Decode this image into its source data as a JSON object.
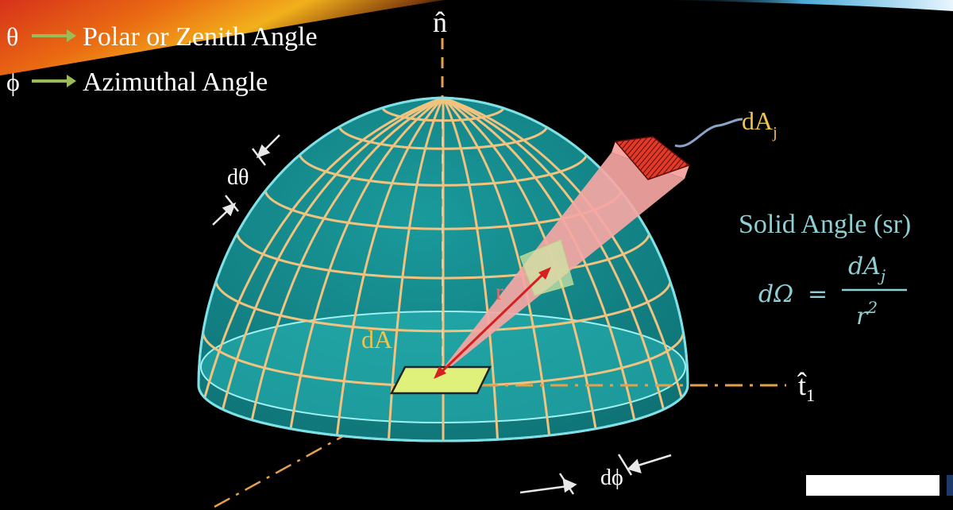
{
  "colors": {
    "background": "#000000",
    "dome_fill": "#128486",
    "dome_edge": "#7fe0e6",
    "grid_lines": "#f2c27f",
    "base_disc": "#2ab8b8",
    "beam": "#f6a7a4",
    "patch_dA": "#dff17b",
    "vector_r": "#d62020",
    "legend_text": "#ffffff",
    "arrow_green": "#9bbb59",
    "dA_text": "#f0c34a",
    "solid_angle_text": "#8ecfd3",
    "axis_dash": "#e6a04c"
  },
  "legend": [
    {
      "symbol": "θ",
      "label": "Polar or Zenith Angle"
    },
    {
      "symbol": "ϕ",
      "label": "Azimuthal Angle"
    }
  ],
  "labels": {
    "normal": "n̂",
    "tangent": "t̂",
    "tangent_sub": "1",
    "dA": "dA",
    "dAj_main": "dA",
    "dAj_sub": "j",
    "r": "r",
    "dtheta": "dθ",
    "dphi": "dϕ"
  },
  "formula": {
    "title": "Solid Angle (sr)",
    "lhs": "dΩ",
    "equals": "=",
    "numerator_main": "dA",
    "numerator_sub": "j",
    "denominator_main": "r",
    "denominator_sup": "2"
  },
  "icons": {
    "arrow": "right-arrow-icon"
  }
}
